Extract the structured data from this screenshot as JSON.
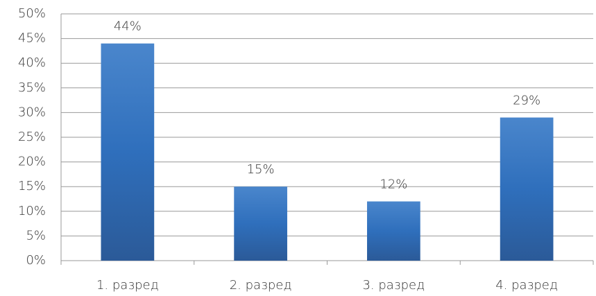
{
  "chart_data": {
    "type": "bar",
    "categories": [
      "1. разред",
      "2. разред",
      "3. разред",
      "4. разред"
    ],
    "values": [
      44,
      15,
      12,
      29
    ],
    "value_labels": [
      "44%",
      "15%",
      "12%",
      "29%"
    ],
    "color": "#3a72b8",
    "ylim": [
      0,
      50
    ],
    "yticks": [
      {
        "value": 0,
        "label": "0%"
      },
      {
        "value": 5,
        "label": "5%"
      },
      {
        "value": 10,
        "label": "10%"
      },
      {
        "value": 15,
        "label": "15%"
      },
      {
        "value": 20,
        "label": "20%"
      },
      {
        "value": 25,
        "label": "25%"
      },
      {
        "value": 30,
        "label": "30%"
      },
      {
        "value": 35,
        "label": "35%"
      },
      {
        "value": 40,
        "label": "40%"
      },
      {
        "value": 45,
        "label": "45%"
      },
      {
        "value": 50,
        "label": "50%"
      }
    ],
    "grid": true
  }
}
